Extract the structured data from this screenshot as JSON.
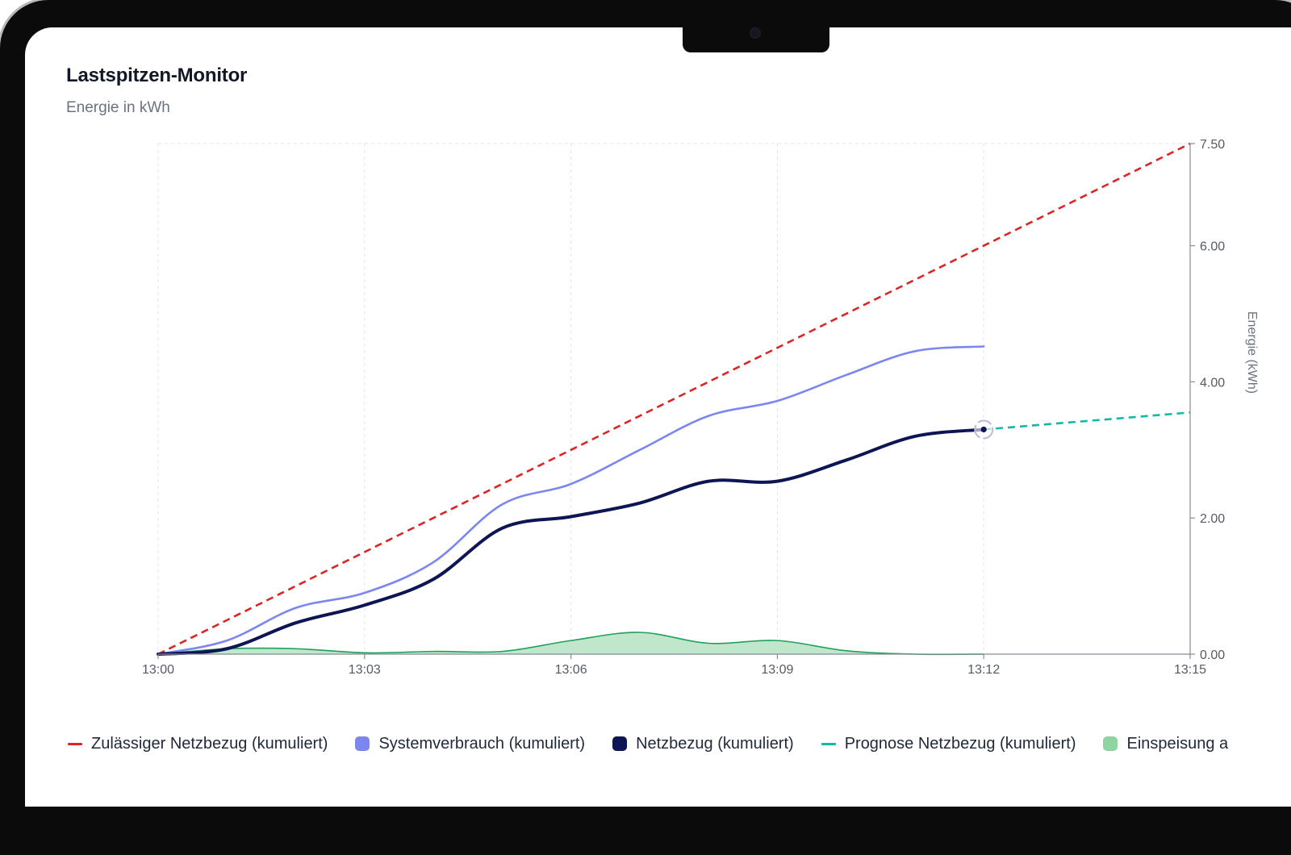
{
  "header": {
    "title": "Lastspitzen-Monitor",
    "subtitle": "Energie in kWh"
  },
  "chart_data": {
    "type": "line",
    "x_type": "time",
    "xlim": [
      "13:00",
      "13:15"
    ],
    "x_ticks": [
      "13:00",
      "13:03",
      "13:06",
      "13:09",
      "13:12",
      "13:15"
    ],
    "ylim": [
      0,
      7.5
    ],
    "y_ticks": [
      0,
      2,
      4,
      6,
      7.5
    ],
    "y_tick_labels": [
      "0.00",
      "2.00",
      "4.00",
      "6.00",
      "7.50"
    ],
    "ylabel": "Energie (kWh)",
    "y_axis_position": "right",
    "grid": true,
    "legend_position": "bottom",
    "series": [
      {
        "name": "Zulässiger Netzbezug (kumuliert)",
        "style": "dashed-line",
        "color": "#dc2626",
        "x": [
          "13:00",
          "13:15"
        ],
        "y": [
          0,
          7.5
        ]
      },
      {
        "name": "Systemverbrauch (kumuliert)",
        "style": "line",
        "color": "#7c86f0",
        "x": [
          "13:00",
          "13:01",
          "13:02",
          "13:03",
          "13:04",
          "13:05",
          "13:06",
          "13:07",
          "13:08",
          "13:09",
          "13:10",
          "13:11",
          "13:12"
        ],
        "y": [
          0,
          0.2,
          0.68,
          0.9,
          1.35,
          2.2,
          2.5,
          3.0,
          3.5,
          3.72,
          4.1,
          4.45,
          4.52
        ]
      },
      {
        "name": "Netzbezug (kumuliert)",
        "style": "line",
        "color": "#0d1554",
        "x": [
          "13:00",
          "13:01",
          "13:02",
          "13:03",
          "13:04",
          "13:05",
          "13:06",
          "13:07",
          "13:08",
          "13:09",
          "13:10",
          "13:11",
          "13:12"
        ],
        "y": [
          0,
          0.08,
          0.46,
          0.72,
          1.1,
          1.85,
          2.02,
          2.22,
          2.54,
          2.54,
          2.85,
          3.2,
          3.3
        ]
      },
      {
        "name": "Prognose Netzbezug (kumuliert)",
        "style": "dashed-line",
        "color": "#14b8a6",
        "x": [
          "13:12",
          "13:15"
        ],
        "y": [
          3.3,
          3.55
        ]
      },
      {
        "name": "Einspeisung a",
        "style": "area",
        "color": "#22a05a",
        "fill": "#b9e4c6",
        "x": [
          "13:00",
          "13:01",
          "13:02",
          "13:03",
          "13:04",
          "13:05",
          "13:06",
          "13:07",
          "13:08",
          "13:09",
          "13:10",
          "13:11",
          "13:12"
        ],
        "y": [
          0,
          0.08,
          0.08,
          0.02,
          0.04,
          0.04,
          0.2,
          0.32,
          0.16,
          0.2,
          0.05,
          0.0,
          0.0
        ]
      }
    ]
  }
}
